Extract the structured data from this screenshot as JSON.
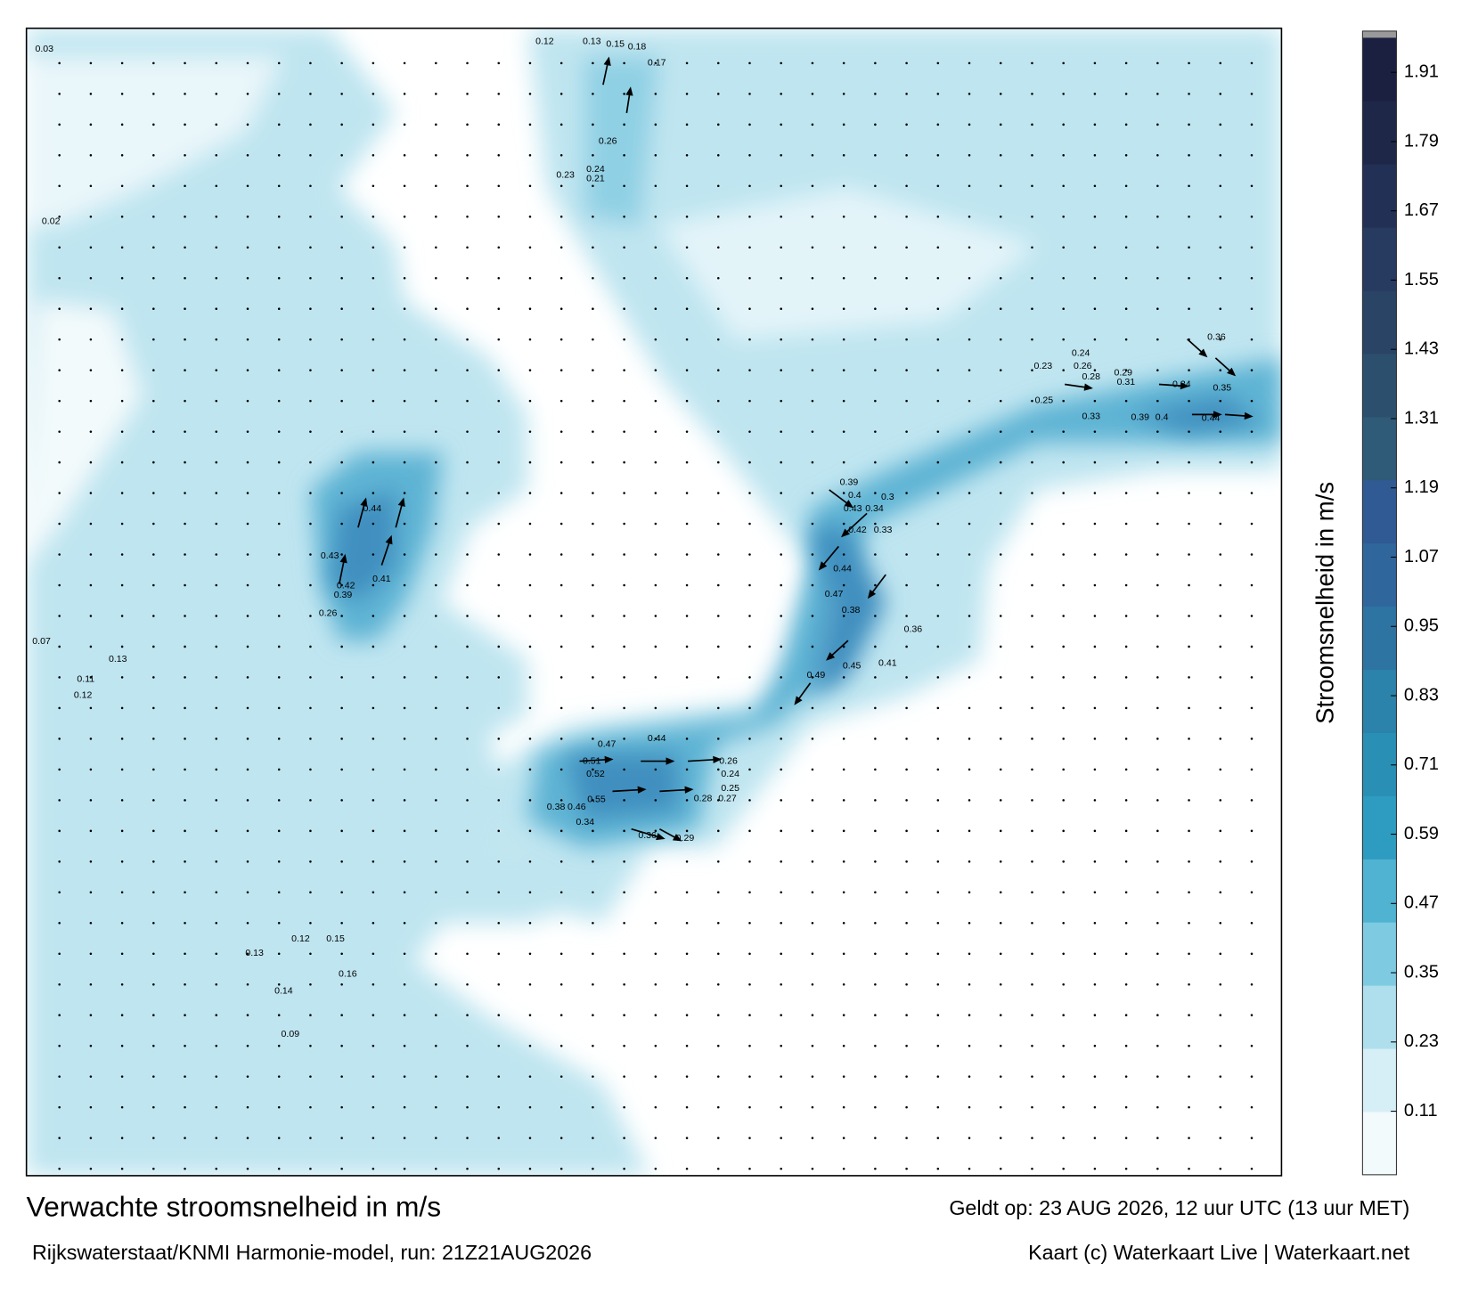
{
  "header": {
    "title": "Verwachte stroomsnelheid in m/s",
    "valid": "Geldt op: 23 AUG 2026, 12 uur UTC (13 uur MET)"
  },
  "footer": {
    "source": "Rijkswaterstaat/KNMI Harmonie-model, run: 21Z21AUG2026",
    "credit": "Kaart (c) Waterkaart Live | Waterkaart.net"
  },
  "colorbar": {
    "label": "Stroomsnelheid in m/s",
    "lim": [
      0,
      1.97
    ],
    "ticks": [
      0.11,
      0.23,
      0.35,
      0.47,
      0.59,
      0.71,
      0.83,
      0.95,
      1.07,
      1.19,
      1.31,
      1.43,
      1.55,
      1.67,
      1.79,
      1.91
    ],
    "colors": [
      "#f3fafc",
      "#d6eff6",
      "#afdfed",
      "#7ecbe1",
      "#4fb3d1",
      "#2d9cc0",
      "#2a8fb5",
      "#2b82aa",
      "#2d74a3",
      "#2f669c",
      "#305a94",
      "#2f5a78",
      "#2d4f6e",
      "#294464",
      "#273a5f",
      "#233055",
      "#1f2749",
      "#1b2040"
    ]
  },
  "map": {
    "speed_labels": [
      "0.44",
      "0.43",
      "0.42",
      "0.41",
      "0.39",
      "0.26",
      "0.51",
      "0.52",
      "0.55",
      "0.47",
      "0.44",
      "0.38",
      "0.46",
      "0.34",
      "0.36",
      "0.29",
      "0.28",
      "0.27",
      "0.26",
      "0.24",
      "0.25",
      "0.49",
      "0.45",
      "0.41",
      "0.42",
      "0.4",
      "0.39",
      "0.43",
      "0.34",
      "0.33",
      "0.3",
      "0.44",
      "0.47",
      "0.38",
      "0.36",
      "0.44",
      "0.39",
      "0.4",
      "0.33",
      "0.34",
      "0.35",
      "0.36",
      "0.31",
      "0.29",
      "0.28",
      "0.25",
      "0.23",
      "0.24",
      "0.26",
      "0.12",
      "0.13",
      "0.15",
      "0.18",
      "0.17",
      "0.26",
      "0.24",
      "0.21",
      "0.23",
      "0.07",
      "0.13",
      "0.11",
      "0.12",
      "0.12",
      "0.15",
      "0.16",
      "0.14",
      "0.13",
      "0.09",
      "0.03",
      "0.02"
    ]
  }
}
